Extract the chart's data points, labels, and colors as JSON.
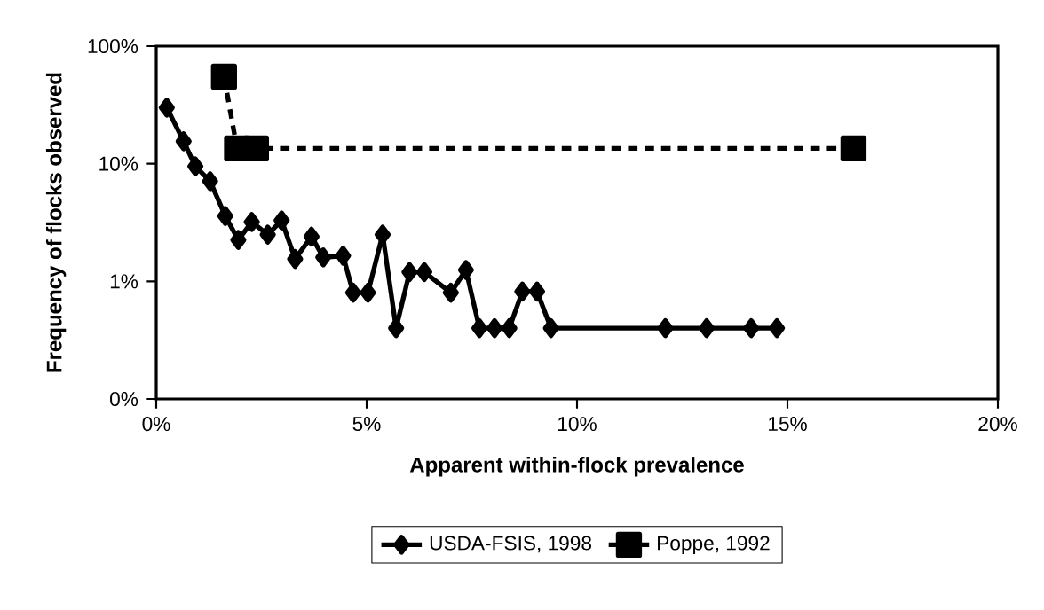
{
  "chart_data": {
    "type": "line",
    "xlabel": "Apparent within-flock prevalence",
    "ylabel": "Frequency of flocks observed",
    "xlim": [
      0,
      20
    ],
    "xticks": [
      {
        "value": 0,
        "label": "0%"
      },
      {
        "value": 5,
        "label": "5%"
      },
      {
        "value": 10,
        "label": "10%"
      },
      {
        "value": 15,
        "label": "15%"
      },
      {
        "value": 20,
        "label": "20%"
      }
    ],
    "ylim": [
      0.1,
      100
    ],
    "yticks": [
      {
        "value": 0.1,
        "label": "0%"
      },
      {
        "value": 1,
        "label": "1%"
      },
      {
        "value": 10,
        "label": "10%"
      },
      {
        "value": 100,
        "label": "100%"
      }
    ],
    "log": "y",
    "legend": "bottom",
    "series": [
      {
        "name": "USDA-FSIS, 1998",
        "color": "#000000",
        "marker": "diamond",
        "line_style": "solid",
        "x": [
          0.25,
          0.65,
          0.93,
          1.28,
          1.64,
          1.95,
          2.27,
          2.65,
          2.98,
          3.3,
          3.69,
          3.97,
          4.44,
          4.68,
          5.03,
          5.38,
          5.7,
          6.02,
          6.37,
          7.0,
          7.36,
          7.68,
          8.04,
          8.39,
          8.7,
          9.05,
          9.38,
          12.1,
          13.08,
          14.14,
          14.75
        ],
        "values": [
          30,
          15.5,
          9.5,
          7.1,
          3.6,
          2.25,
          3.2,
          2.5,
          3.3,
          1.55,
          2.4,
          1.6,
          1.65,
          0.8,
          0.8,
          2.5,
          0.4,
          1.2,
          1.2,
          0.8,
          1.25,
          0.4,
          0.4,
          0.4,
          0.82,
          0.82,
          0.4,
          0.4,
          0.4,
          0.4,
          0.4
        ]
      },
      {
        "name": "Poppe, 1992",
        "color": "#000000",
        "marker": "square",
        "line_style": "dashed",
        "x": [
          1.61,
          1.92,
          2.37,
          16.57
        ],
        "values": [
          55,
          13.5,
          13.5,
          13.5
        ]
      }
    ]
  }
}
